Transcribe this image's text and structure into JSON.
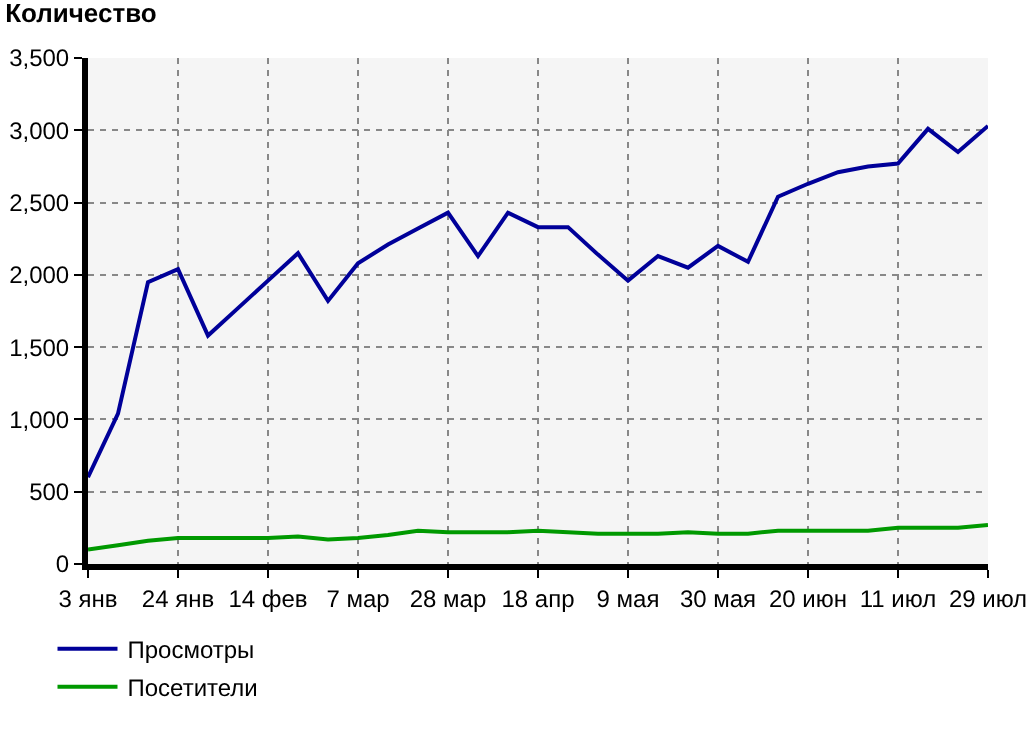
{
  "chart_data": {
    "type": "line",
    "title": "Количество",
    "categories": [
      "3 янв",
      null,
      null,
      "24 янв",
      null,
      null,
      "14 фев",
      null,
      null,
      "7 мар",
      null,
      null,
      "28 мар",
      null,
      null,
      "18 апр",
      null,
      null,
      "9 мая",
      null,
      null,
      "30 мая",
      null,
      null,
      "20 июн",
      null,
      null,
      "11 июл",
      null,
      null,
      "29 июл"
    ],
    "series": [
      {
        "name": "Просмотры",
        "color": "#000099",
        "values": [
          600,
          1040,
          1950,
          2040,
          1580,
          1770,
          1960,
          2150,
          1820,
          2080,
          2210,
          2320,
          2430,
          2130,
          2430,
          2330,
          2330,
          2140,
          1960,
          2130,
          2050,
          2200,
          2090,
          2540,
          2630,
          2710,
          2750,
          2770,
          3010,
          2850,
          3030
        ]
      },
      {
        "name": "Посетители",
        "color": "#009900",
        "values": [
          100,
          130,
          160,
          180,
          180,
          180,
          180,
          190,
          170,
          180,
          200,
          230,
          220,
          220,
          220,
          230,
          220,
          210,
          210,
          210,
          220,
          210,
          210,
          230,
          230,
          230,
          230,
          250,
          250,
          250,
          270
        ]
      }
    ],
    "ylim": [
      0,
      3500
    ],
    "yticks": [
      0,
      500,
      {
        "value": 1000,
        "label": "1,000"
      },
      {
        "value": 1500,
        "label": "1,500"
      },
      {
        "value": 2000,
        "label": "2,000"
      },
      {
        "value": 2500,
        "label": "2,500"
      },
      {
        "value": 3000,
        "label": "3,000"
      },
      {
        "value": 3500,
        "label": "3,500"
      }
    ],
    "grid": true,
    "legend": "bottom left",
    "line_style": "solid",
    "marker": "none"
  }
}
